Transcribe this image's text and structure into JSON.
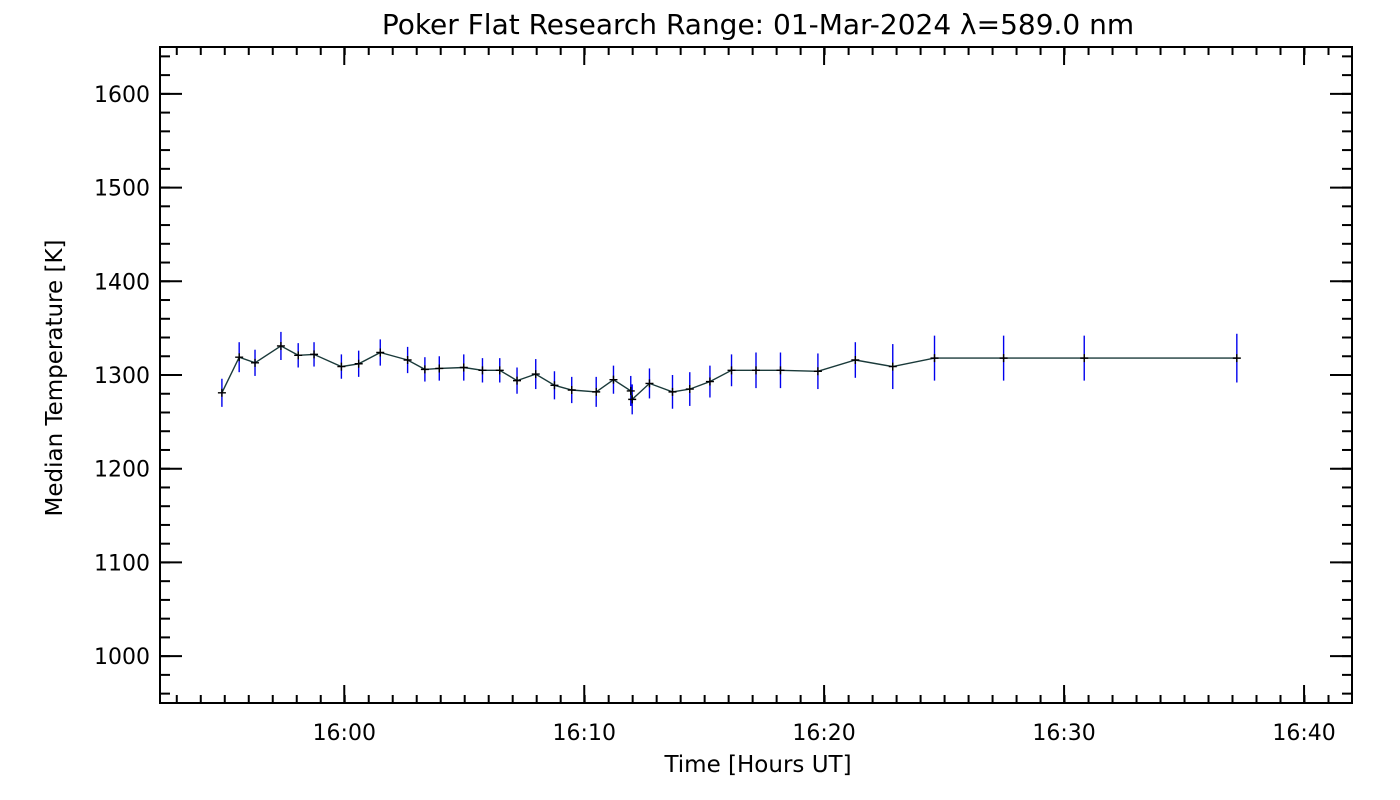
{
  "chart_data": {
    "type": "line",
    "title": "Poker Flat Research Range: 01-Mar-2024 λ=589.0 nm",
    "xlabel": "Time [Hours UT]",
    "ylabel": "Median Temperature [K]",
    "xlim": [
      15.872,
      16.7
    ],
    "ylim": [
      950,
      1650
    ],
    "x_ticks": [
      {
        "value": 16.0,
        "label": "16:00"
      },
      {
        "value": 16.1667,
        "label": "16:10"
      },
      {
        "value": 16.3333,
        "label": "16:20"
      },
      {
        "value": 16.5,
        "label": "16:30"
      },
      {
        "value": 16.6667,
        "label": "16:40"
      }
    ],
    "x_minor_step": 0.016667,
    "y_ticks": [
      1000,
      1100,
      1200,
      1300,
      1400,
      1500,
      1600
    ],
    "y_minor_step": 20,
    "colors": {
      "line": "#1a3a3a",
      "errorbar": "#0000ee",
      "axis": "#000000"
    },
    "series": [
      {
        "name": "Median Temperature",
        "x": [
          15.915,
          15.927,
          15.938,
          15.956,
          15.968,
          15.979,
          15.998,
          16.01,
          16.025,
          16.044,
          16.056,
          16.066,
          16.083,
          16.096,
          16.108,
          16.12,
          16.133,
          16.146,
          16.158,
          16.175,
          16.187,
          16.199,
          16.2,
          16.212,
          16.228,
          16.24,
          16.254,
          16.269,
          16.286,
          16.303,
          16.329,
          16.355,
          16.381,
          16.41,
          16.458,
          16.514,
          16.62
        ],
        "y": [
          1281,
          1319,
          1313,
          1331,
          1321,
          1322,
          1309,
          1312,
          1324,
          1316,
          1306,
          1307,
          1308,
          1305,
          1305,
          1294,
          1301,
          1289,
          1284,
          1282,
          1295,
          1283,
          1274,
          1291,
          1282,
          1285,
          1293,
          1305,
          1305,
          1305,
          1304,
          1316,
          1309,
          1318,
          1318,
          1318,
          1318
        ],
        "yerr": [
          15,
          16,
          14,
          15,
          13,
          13,
          13,
          14,
          14,
          14,
          13,
          13,
          14,
          13,
          13,
          14,
          16,
          15,
          14,
          16,
          15,
          16,
          16,
          16,
          18,
          18,
          17,
          17,
          19,
          19,
          19,
          19,
          24,
          24,
          24,
          24,
          26
        ]
      }
    ]
  }
}
